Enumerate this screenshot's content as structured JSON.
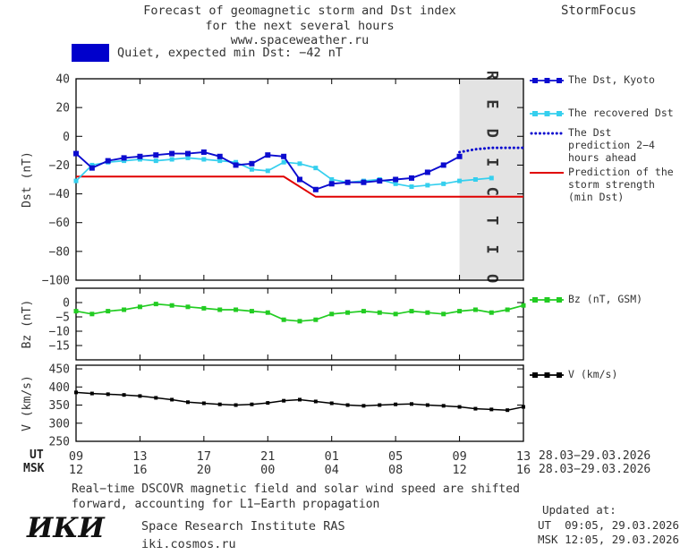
{
  "header": {
    "title_line1": "Forecast of geomagnetic storm and Dst index",
    "title_line2": "for the next several hours",
    "title_line3": "www.spaceweather.ru",
    "brand": "StormFocus"
  },
  "status_banner": {
    "swatch_color": "#0000cc",
    "label": "Quiet, expected min Dst: −42 nT"
  },
  "legend_items": [
    {
      "label": "The Dst, Kyoto",
      "color": "#0b0bcf",
      "style": "solid-square"
    },
    {
      "label": "The recovered Dst",
      "color": "#35cfee",
      "style": "solid-square"
    },
    {
      "label": "The Dst prediction 2−4 hours ahead",
      "color": "#0b0bcf",
      "style": "dotted"
    },
    {
      "label": "Prediction of the storm strength (min Dst)",
      "color": "#e00000",
      "style": "solid"
    },
    {
      "label": "Bz (nT, GSM)",
      "color": "#22cc22",
      "style": "solid-square"
    },
    {
      "label": "V (km/s)",
      "color": "#000000",
      "style": "solid-square"
    }
  ],
  "x_axis": {
    "ut_label": "UT",
    "msk_label": "MSK",
    "ut_dates": "28.03−29.03.2026",
    "msk_dates": "28.03−29.03.2026"
  },
  "footer": {
    "note_line1": "Real−time DSCOVR magnetic field and solar wind speed are shifted",
    "note_line2": "forward, accounting for L1−Earth propagation",
    "logo": "ИКИ",
    "institute": "Space Research Institute RAS",
    "site": "iki.cosmos.ru",
    "updated_label": "Updated at:",
    "updated_ut": "UT  09:05, 29.03.2026",
    "updated_msk": "MSK 12:05, 29.03.2026"
  },
  "chart_data": [
    {
      "id": "dst",
      "type": "line",
      "title": "Dst index forecast",
      "ylabel": "Dst (nT)",
      "ylim": [
        -100,
        40
      ],
      "yticks": [
        40,
        20,
        0,
        -20,
        -40,
        -60,
        -80,
        -100
      ],
      "xlim": [
        0,
        28
      ],
      "xticks": [
        0,
        4,
        8,
        12,
        16,
        20,
        24,
        28
      ],
      "prediction_region": {
        "from": 24,
        "to": 28,
        "label": "P R E D I C T I O N",
        "color": "#e3e3e3",
        "text_color": "#b9b9b9"
      },
      "series": [
        {
          "name": "Prediction of the storm strength (min Dst)",
          "color": "#e00000",
          "width": 2,
          "x": [
            0,
            13,
            15,
            28
          ],
          "values": [
            -28,
            -28,
            -42,
            -42
          ]
        },
        {
          "name": "The recovered Dst",
          "color": "#35cfee",
          "marker": "square",
          "msize": 5,
          "x_start": 0,
          "x_step": 1,
          "values": [
            -31,
            -20,
            -18,
            -17,
            -16,
            -17,
            -16,
            -15,
            -16,
            -17,
            -18,
            -23,
            -24,
            -18,
            -19,
            -22,
            -30,
            -32,
            -31,
            -30,
            -33,
            -35,
            -34,
            -33,
            -31,
            -30,
            -29
          ]
        },
        {
          "name": "The Dst, Kyoto",
          "color": "#0b0bcf",
          "marker": "square",
          "msize": 6,
          "width": 1.9,
          "x_start": 0,
          "x_step": 1,
          "values": [
            -12,
            -22,
            -17,
            -15,
            -14,
            -13,
            -12,
            -12,
            -11,
            -14,
            -20,
            -19,
            -13,
            -14,
            -30,
            -37,
            -33,
            -32,
            -32,
            -31,
            -30,
            -29,
            -25,
            -20,
            -14
          ]
        },
        {
          "name": "The Dst prediction 2−4 hours ahead",
          "color": "#0b0bcf",
          "dash": "dotted",
          "x": [
            24,
            25,
            26,
            27,
            28
          ],
          "values": [
            -11,
            -9,
            -8,
            -8,
            -8
          ]
        }
      ]
    },
    {
      "id": "bz",
      "type": "line",
      "title": "Bz component",
      "ylabel": "Bz (nT)",
      "ylim": [
        -20,
        5
      ],
      "yticks": [
        0,
        -5,
        -10,
        -15
      ],
      "xlim": [
        0,
        28
      ],
      "xticks": [
        0,
        4,
        8,
        12,
        16,
        20,
        24,
        28
      ],
      "series": [
        {
          "name": "Bz (nT, GSM)",
          "color": "#22cc22",
          "marker": "square",
          "msize": 5,
          "x_start": 0,
          "x_step": 1,
          "values": [
            -3,
            -4,
            -3,
            -2.5,
            -1.5,
            -0.5,
            -1,
            -1.5,
            -2,
            -2.5,
            -2.5,
            -3,
            -3.5,
            -6,
            -6.5,
            -6,
            -4,
            -3.5,
            -3,
            -3.5,
            -4,
            -3,
            -3.5,
            -4,
            -3,
            -2.5,
            -3.5,
            -2.5,
            -1
          ]
        }
      ]
    },
    {
      "id": "v",
      "type": "line",
      "title": "Solar wind speed",
      "ylabel": "V (km/s)",
      "ylim": [
        250,
        460
      ],
      "yticks": [
        450,
        400,
        350,
        300,
        250
      ],
      "xlim": [
        0,
        28
      ],
      "xticks": [
        0,
        4,
        8,
        12,
        16,
        20,
        24,
        28
      ],
      "xtick_ut": [
        "09",
        "13",
        "17",
        "21",
        "01",
        "05",
        "09",
        "13"
      ],
      "xtick_msk": [
        "12",
        "16",
        "20",
        "00",
        "04",
        "08",
        "12",
        "16"
      ],
      "series": [
        {
          "name": "V (km/s)",
          "color": "#000000",
          "marker": "square",
          "msize": 4,
          "width": 1.5,
          "x_start": 0,
          "x_step": 1,
          "values": [
            385,
            382,
            380,
            378,
            375,
            370,
            365,
            358,
            355,
            352,
            350,
            352,
            356,
            362,
            365,
            360,
            355,
            350,
            348,
            350,
            352,
            353,
            350,
            348,
            345,
            340,
            338,
            336,
            345
          ]
        }
      ]
    }
  ]
}
